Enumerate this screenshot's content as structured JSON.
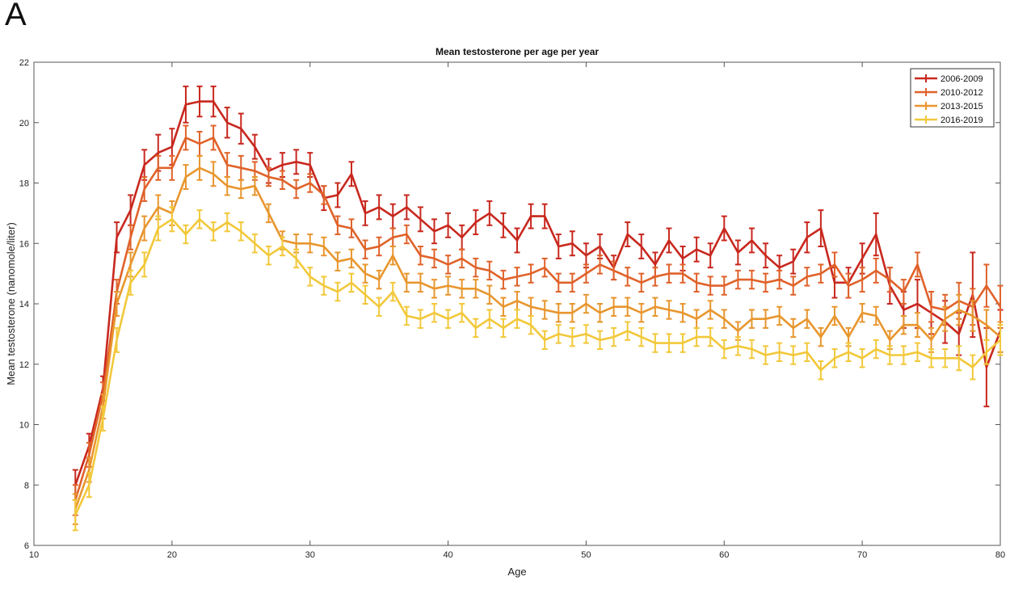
{
  "panel_label": "A",
  "chart_data": {
    "type": "line",
    "title": "Mean testosterone per age per year",
    "xlabel": "Age",
    "ylabel": "Mean testosterone (nanomole/liter)",
    "xlim": [
      10,
      80
    ],
    "ylim": [
      6,
      22
    ],
    "xticks": [
      10,
      20,
      30,
      40,
      50,
      60,
      70,
      80
    ],
    "yticks": [
      6,
      8,
      10,
      12,
      14,
      16,
      18,
      20,
      22
    ],
    "legend_position": "top-right",
    "x": [
      13,
      14,
      15,
      16,
      17,
      18,
      19,
      20,
      21,
      22,
      23,
      24,
      25,
      26,
      27,
      28,
      29,
      30,
      31,
      32,
      33,
      34,
      35,
      36,
      37,
      38,
      39,
      40,
      41,
      42,
      43,
      44,
      45,
      46,
      47,
      48,
      49,
      50,
      51,
      52,
      53,
      54,
      55,
      56,
      57,
      58,
      59,
      60,
      61,
      62,
      63,
      64,
      65,
      66,
      67,
      68,
      69,
      70,
      71,
      72,
      73,
      74,
      75,
      76,
      77,
      78,
      79,
      80
    ],
    "series": [
      {
        "name": "2006-2009",
        "color": "#c8281e",
        "values": [
          8.0,
          9.3,
          11.2,
          16.2,
          17.1,
          18.6,
          19.0,
          19.2,
          20.6,
          20.7,
          20.7,
          20.0,
          19.8,
          19.2,
          18.4,
          18.6,
          18.7,
          18.6,
          17.5,
          17.6,
          18.3,
          17.0,
          17.2,
          16.9,
          17.2,
          16.8,
          16.4,
          16.6,
          16.2,
          16.7,
          17.0,
          16.6,
          16.1,
          16.9,
          16.9,
          15.9,
          16.0,
          15.6,
          15.9,
          15.2,
          16.3,
          15.9,
          15.3,
          16.1,
          15.5,
          15.8,
          15.6,
          16.5,
          15.7,
          16.1,
          15.6,
          15.2,
          15.4,
          16.2,
          16.5,
          14.7,
          14.7,
          15.5,
          16.3,
          14.6,
          13.8,
          14.0,
          13.7,
          13.4,
          13.0,
          14.3,
          11.9,
          13.1
        ],
        "errors": [
          0.5,
          0.4,
          0.4,
          0.5,
          0.5,
          0.5,
          0.6,
          0.6,
          0.6,
          0.5,
          0.5,
          0.5,
          0.5,
          0.4,
          0.4,
          0.4,
          0.4,
          0.4,
          0.4,
          0.4,
          0.4,
          0.4,
          0.4,
          0.4,
          0.4,
          0.4,
          0.4,
          0.4,
          0.4,
          0.4,
          0.4,
          0.4,
          0.4,
          0.4,
          0.4,
          0.4,
          0.4,
          0.4,
          0.4,
          0.4,
          0.4,
          0.4,
          0.4,
          0.4,
          0.4,
          0.4,
          0.4,
          0.4,
          0.4,
          0.4,
          0.4,
          0.4,
          0.4,
          0.5,
          0.6,
          0.5,
          0.5,
          0.5,
          0.7,
          0.6,
          0.6,
          0.8,
          0.7,
          0.7,
          0.7,
          1.4,
          1.3,
          0.7
        ]
      },
      {
        "name": "2010-2012",
        "color": "#e0622a",
        "values": [
          7.5,
          9.0,
          11.0,
          14.4,
          16.2,
          17.8,
          18.5,
          18.5,
          19.5,
          19.3,
          19.5,
          18.6,
          18.5,
          18.4,
          18.2,
          18.1,
          17.8,
          18.0,
          17.6,
          16.6,
          16.5,
          15.8,
          15.9,
          16.2,
          16.3,
          15.6,
          15.5,
          15.3,
          15.5,
          15.2,
          15.1,
          14.8,
          14.9,
          15.0,
          15.2,
          14.7,
          14.7,
          15.0,
          15.3,
          15.1,
          14.9,
          14.7,
          14.9,
          15.0,
          15.0,
          14.7,
          14.6,
          14.6,
          14.8,
          14.8,
          14.7,
          14.8,
          14.6,
          14.9,
          15.0,
          15.3,
          14.6,
          14.8,
          15.1,
          14.8,
          14.4,
          15.3,
          13.9,
          13.8,
          14.1,
          13.9,
          14.6,
          13.9
        ],
        "errors": [
          0.5,
          0.4,
          0.4,
          0.4,
          0.4,
          0.4,
          0.4,
          0.4,
          0.4,
          0.4,
          0.4,
          0.4,
          0.4,
          0.3,
          0.3,
          0.3,
          0.3,
          0.3,
          0.3,
          0.3,
          0.3,
          0.3,
          0.3,
          0.3,
          0.3,
          0.3,
          0.3,
          0.3,
          0.3,
          0.3,
          0.3,
          0.3,
          0.3,
          0.3,
          0.3,
          0.3,
          0.3,
          0.3,
          0.3,
          0.3,
          0.3,
          0.3,
          0.3,
          0.3,
          0.3,
          0.3,
          0.3,
          0.3,
          0.3,
          0.3,
          0.3,
          0.3,
          0.3,
          0.3,
          0.3,
          0.4,
          0.4,
          0.4,
          0.4,
          0.4,
          0.4,
          0.4,
          0.5,
          0.5,
          0.6,
          0.6,
          0.7,
          0.7
        ]
      },
      {
        "name": "2013-2015",
        "color": "#e8962e",
        "values": [
          7.2,
          8.5,
          10.6,
          14.0,
          15.3,
          16.5,
          17.2,
          17.0,
          18.2,
          18.5,
          18.3,
          17.9,
          17.8,
          17.9,
          17.0,
          16.1,
          16.0,
          16.0,
          15.9,
          15.4,
          15.5,
          15.0,
          14.8,
          15.6,
          14.7,
          14.7,
          14.5,
          14.6,
          14.5,
          14.5,
          14.3,
          13.9,
          14.1,
          13.9,
          13.8,
          13.7,
          13.7,
          14.0,
          13.7,
          13.9,
          13.9,
          13.7,
          13.9,
          13.8,
          13.7,
          13.5,
          13.8,
          13.5,
          13.1,
          13.5,
          13.5,
          13.6,
          13.2,
          13.5,
          12.9,
          13.6,
          12.9,
          13.7,
          13.6,
          12.8,
          13.3,
          13.3,
          12.8,
          13.5,
          13.8,
          13.6,
          13.3,
          12.9
        ],
        "errors": [
          0.5,
          0.4,
          0.4,
          0.4,
          0.4,
          0.4,
          0.4,
          0.4,
          0.4,
          0.4,
          0.4,
          0.3,
          0.3,
          0.3,
          0.3,
          0.3,
          0.3,
          0.3,
          0.3,
          0.3,
          0.3,
          0.3,
          0.3,
          0.3,
          0.3,
          0.3,
          0.3,
          0.3,
          0.3,
          0.3,
          0.3,
          0.3,
          0.3,
          0.3,
          0.3,
          0.3,
          0.3,
          0.3,
          0.3,
          0.3,
          0.3,
          0.3,
          0.3,
          0.3,
          0.3,
          0.3,
          0.3,
          0.3,
          0.3,
          0.3,
          0.3,
          0.3,
          0.3,
          0.3,
          0.3,
          0.3,
          0.3,
          0.3,
          0.3,
          0.3,
          0.3,
          0.4,
          0.4,
          0.4,
          0.5,
          0.5,
          0.5,
          0.5
        ]
      },
      {
        "name": "2016-2019",
        "color": "#f2c83a",
        "values": [
          7.0,
          8.0,
          10.2,
          12.8,
          14.7,
          15.3,
          16.5,
          16.8,
          16.3,
          16.8,
          16.4,
          16.7,
          16.4,
          16.0,
          15.6,
          15.9,
          15.5,
          14.9,
          14.6,
          14.4,
          14.7,
          14.3,
          13.9,
          14.4,
          13.6,
          13.5,
          13.7,
          13.5,
          13.7,
          13.2,
          13.5,
          13.2,
          13.5,
          13.3,
          12.8,
          13.0,
          12.9,
          13.0,
          12.8,
          12.9,
          13.1,
          12.9,
          12.7,
          12.7,
          12.7,
          12.9,
          12.9,
          12.5,
          12.6,
          12.5,
          12.3,
          12.4,
          12.3,
          12.4,
          11.8,
          12.2,
          12.4,
          12.2,
          12.5,
          12.3,
          12.3,
          12.4,
          12.2,
          12.2,
          12.2,
          11.9,
          12.4,
          12.8
        ],
        "errors": [
          0.5,
          0.4,
          0.4,
          0.4,
          0.4,
          0.4,
          0.4,
          0.4,
          0.3,
          0.3,
          0.3,
          0.3,
          0.3,
          0.3,
          0.3,
          0.3,
          0.3,
          0.3,
          0.3,
          0.3,
          0.3,
          0.3,
          0.3,
          0.3,
          0.3,
          0.3,
          0.3,
          0.3,
          0.3,
          0.3,
          0.3,
          0.3,
          0.3,
          0.3,
          0.3,
          0.3,
          0.3,
          0.3,
          0.3,
          0.3,
          0.3,
          0.3,
          0.3,
          0.3,
          0.3,
          0.3,
          0.3,
          0.3,
          0.3,
          0.3,
          0.3,
          0.3,
          0.3,
          0.3,
          0.3,
          0.3,
          0.3,
          0.3,
          0.3,
          0.3,
          0.3,
          0.3,
          0.3,
          0.3,
          0.4,
          0.4,
          0.4,
          0.5
        ]
      }
    ]
  }
}
